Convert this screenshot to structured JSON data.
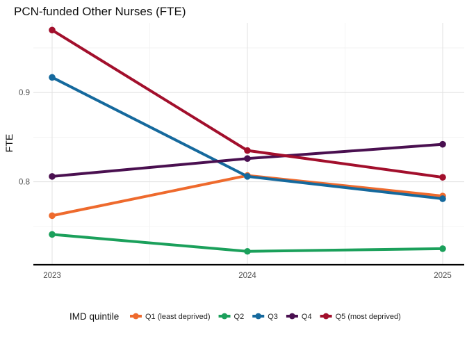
{
  "chart_data": {
    "type": "line",
    "title": "PCN-funded Other Nurses (FTE)",
    "xlabel": "",
    "ylabel": "FTE",
    "x": [
      2023,
      2024,
      2025
    ],
    "x_tick_labels": [
      "2023",
      "2024",
      "2025"
    ],
    "y_ticks": [
      0.8,
      0.9
    ],
    "y_tick_labels": [
      "0.8",
      "0.9"
    ],
    "ylim": [
      0.707,
      0.978
    ],
    "grid": true,
    "legend_title": "IMD quintile",
    "legend_position": "bottom",
    "series": [
      {
        "name": "Q1 (least deprived)",
        "color": "#EE6A2D",
        "values": [
          0.762,
          0.807,
          0.784
        ]
      },
      {
        "name": "Q2",
        "color": "#1BA05B",
        "values": [
          0.741,
          0.722,
          0.725
        ]
      },
      {
        "name": "Q3",
        "color": "#15699D",
        "values": [
          0.917,
          0.806,
          0.781
        ]
      },
      {
        "name": "Q4",
        "color": "#4A1050",
        "values": [
          0.806,
          0.826,
          0.842
        ]
      },
      {
        "name": "Q5 (most deprived)",
        "color": "#A20F2C",
        "values": [
          0.97,
          0.835,
          0.805
        ]
      }
    ]
  }
}
